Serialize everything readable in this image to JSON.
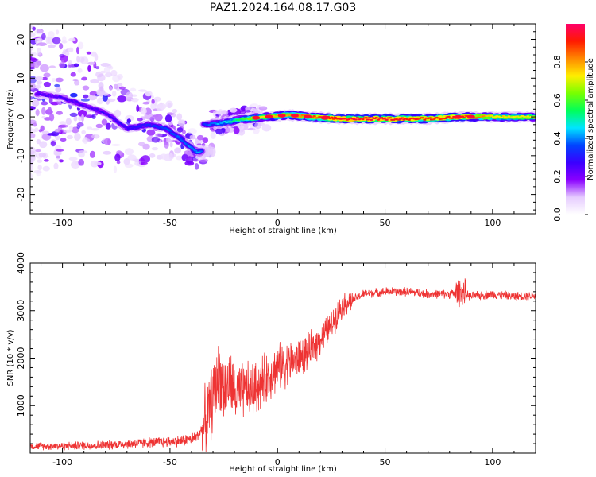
{
  "figure": {
    "title": "PAZ1.2024.164.08.17.G03"
  },
  "chart_data": [
    {
      "type": "heatmap",
      "xlabel": "Height of straight line (km)",
      "ylabel": "Frequency (Hz)",
      "xlim": [
        -115,
        120
      ],
      "ylim": [
        -25,
        24
      ],
      "x_ticks": [
        -100,
        -50,
        0,
        50,
        100
      ],
      "y_ticks": [
        -20,
        -10,
        0,
        10,
        20
      ],
      "colorbar": {
        "label": "Normalized spectral amplitude",
        "range": [
          0,
          1
        ],
        "ticks": [
          0.0,
          0.2,
          0.4,
          0.6,
          0.8
        ],
        "colormap": [
          "#ffffff",
          "#e6ccff",
          "#8a00ff",
          "#3a00ff",
          "#0044ff",
          "#00e5ff",
          "#00ff5a",
          "#78ff00",
          "#ffee00",
          "#ff8800",
          "#ff1a00",
          "#ff006a"
        ]
      },
      "ridge": [
        {
          "x": -112,
          "y": 6,
          "v": 0.25
        },
        {
          "x": -100,
          "y": 5,
          "v": 0.25
        },
        {
          "x": -90,
          "y": 3,
          "v": 0.25
        },
        {
          "x": -80,
          "y": 1,
          "v": 0.25
        },
        {
          "x": -70,
          "y": -3,
          "v": 0.28
        },
        {
          "x": -60,
          "y": -2,
          "v": 0.32
        },
        {
          "x": -52,
          "y": -3,
          "v": 0.36
        },
        {
          "x": -44,
          "y": -6,
          "v": 0.38
        },
        {
          "x": -38,
          "y": -9,
          "v": 0.42
        },
        {
          "x": -30,
          "y": -9,
          "v": 0.32
        },
        {
          "x": -34,
          "y": -2,
          "v": 0.34
        },
        {
          "x": -25,
          "y": -1.5,
          "v": 0.45
        },
        {
          "x": -15,
          "y": -0.5,
          "v": 0.6
        },
        {
          "x": -5,
          "y": 0,
          "v": 0.75
        },
        {
          "x": 5,
          "y": 0.5,
          "v": 0.8
        },
        {
          "x": 15,
          "y": 0,
          "v": 0.85
        },
        {
          "x": 30,
          "y": -0.5,
          "v": 0.95
        },
        {
          "x": 50,
          "y": -0.5,
          "v": 0.95
        },
        {
          "x": 70,
          "y": -0.5,
          "v": 0.9
        },
        {
          "x": 85,
          "y": 0,
          "v": 0.92
        },
        {
          "x": 100,
          "y": 0,
          "v": 0.75
        },
        {
          "x": 120,
          "y": 0,
          "v": 0.7
        }
      ]
    },
    {
      "type": "line",
      "xlabel": "Height of straight line (km)",
      "ylabel": "SNR (10 * v/v)",
      "xlim": [
        -115,
        120
      ],
      "ylim": [
        0,
        4000
      ],
      "x_ticks": [
        -100,
        -50,
        0,
        50,
        100
      ],
      "y_ticks": [
        1000,
        2000,
        3000,
        4000
      ],
      "line_color": "#ee3333",
      "series": [
        {
          "x": [
            -115,
            -100,
            -80,
            -60,
            -45,
            -38,
            -33,
            -30,
            -27,
            -25,
            -22,
            -20,
            -15,
            -10,
            -5,
            0,
            5,
            10,
            15,
            20,
            25,
            30,
            40,
            50,
            60,
            70,
            80,
            85,
            90,
            100,
            110,
            120
          ],
          "values": [
            150,
            150,
            170,
            220,
            260,
            320,
            650,
            1200,
            1700,
            1300,
            1500,
            1200,
            1300,
            1350,
            1600,
            1800,
            1900,
            2000,
            2150,
            2400,
            2700,
            3100,
            3350,
            3400,
            3400,
            3350,
            3350,
            3400,
            3300,
            3350,
            3300,
            3320
          ]
        }
      ]
    }
  ]
}
